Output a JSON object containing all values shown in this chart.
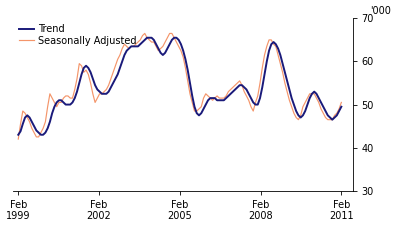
{
  "ylim": [
    30,
    70
  ],
  "yticks": [
    30,
    40,
    50,
    60,
    70
  ],
  "ylabel_top": "'000",
  "xtick_labels": [
    "Feb\n1999",
    "Feb\n2002",
    "Feb\n2005",
    "Feb\n2008",
    "Feb\n2011"
  ],
  "xtick_positions": [
    1999.083,
    2002.083,
    2005.083,
    2008.083,
    2011.083
  ],
  "xlim": [
    1998.9,
    2011.5
  ],
  "trend_color": "#1a1a7a",
  "seasonal_color": "#f4956a",
  "trend_linewidth": 1.4,
  "seasonal_linewidth": 0.85,
  "legend_entries": [
    "Trend",
    "Seasonally Adjusted"
  ],
  "background_color": "#ffffff",
  "trend_data": [
    43.0,
    43.8,
    45.5,
    47.0,
    47.5,
    47.0,
    46.0,
    45.0,
    44.0,
    43.5,
    43.0,
    43.0,
    43.5,
    44.5,
    46.0,
    48.0,
    49.5,
    50.5,
    51.0,
    51.0,
    50.5,
    50.0,
    50.0,
    50.0,
    50.5,
    51.5,
    53.0,
    55.0,
    57.0,
    58.5,
    59.0,
    58.5,
    57.5,
    56.0,
    54.5,
    53.5,
    53.0,
    52.5,
    52.5,
    52.5,
    53.0,
    54.0,
    55.0,
    56.0,
    57.0,
    58.5,
    60.0,
    61.5,
    62.5,
    63.0,
    63.5,
    63.5,
    63.5,
    63.5,
    64.0,
    64.5,
    65.0,
    65.5,
    65.5,
    65.5,
    65.0,
    64.0,
    63.0,
    62.0,
    61.5,
    62.0,
    63.0,
    64.0,
    65.0,
    65.5,
    65.5,
    65.0,
    64.0,
    62.5,
    60.5,
    58.0,
    55.0,
    52.0,
    49.5,
    48.0,
    47.5,
    48.0,
    49.0,
    50.0,
    51.0,
    51.5,
    51.5,
    51.5,
    51.0,
    51.0,
    51.0,
    51.0,
    51.5,
    52.0,
    52.5,
    53.0,
    53.5,
    54.0,
    54.5,
    54.5,
    54.0,
    53.5,
    52.5,
    51.5,
    50.5,
    50.0,
    50.0,
    51.5,
    54.0,
    57.0,
    60.0,
    62.5,
    64.0,
    64.5,
    64.0,
    63.0,
    61.5,
    59.5,
    57.5,
    55.5,
    53.5,
    51.5,
    50.0,
    48.5,
    47.5,
    47.0,
    47.5,
    48.5,
    50.0,
    51.5,
    52.5,
    53.0,
    52.5,
    51.5,
    50.5,
    49.5,
    48.5,
    47.5,
    47.0,
    46.5,
    47.0,
    47.5,
    48.5,
    49.5
  ],
  "seasonal_data": [
    42.0,
    45.5,
    48.5,
    48.0,
    47.0,
    46.0,
    44.5,
    43.5,
    42.5,
    42.5,
    43.5,
    44.5,
    46.0,
    49.5,
    52.5,
    51.5,
    50.5,
    49.5,
    50.5,
    50.5,
    51.5,
    52.0,
    52.0,
    51.5,
    51.5,
    53.5,
    56.0,
    59.5,
    59.0,
    57.5,
    58.0,
    57.0,
    55.0,
    52.5,
    50.5,
    51.5,
    52.5,
    52.5,
    53.0,
    53.5,
    54.5,
    56.0,
    57.5,
    59.0,
    60.5,
    61.5,
    63.0,
    64.0,
    63.5,
    63.0,
    63.5,
    63.5,
    64.0,
    64.5,
    65.0,
    66.0,
    66.5,
    65.5,
    65.0,
    64.5,
    64.5,
    63.5,
    62.5,
    63.0,
    63.5,
    64.5,
    65.5,
    66.5,
    66.5,
    65.5,
    64.5,
    63.5,
    62.5,
    61.0,
    58.5,
    55.5,
    52.5,
    50.5,
    48.5,
    48.5,
    49.0,
    49.5,
    51.5,
    52.5,
    52.0,
    51.5,
    51.0,
    51.5,
    52.0,
    51.5,
    51.5,
    51.5,
    52.0,
    53.0,
    53.5,
    54.0,
    54.5,
    55.0,
    55.5,
    54.5,
    53.0,
    52.0,
    51.0,
    49.5,
    48.5,
    50.5,
    52.0,
    55.0,
    58.5,
    61.5,
    63.5,
    65.0,
    65.0,
    64.0,
    63.5,
    61.5,
    59.5,
    57.5,
    55.0,
    53.0,
    51.0,
    49.5,
    48.0,
    47.0,
    46.5,
    47.5,
    49.5,
    50.5,
    51.5,
    52.5,
    52.5,
    52.5,
    51.5,
    50.5,
    49.0,
    48.0,
    47.0,
    46.5,
    46.5,
    46.5,
    47.5,
    48.0,
    49.0,
    50.5
  ]
}
